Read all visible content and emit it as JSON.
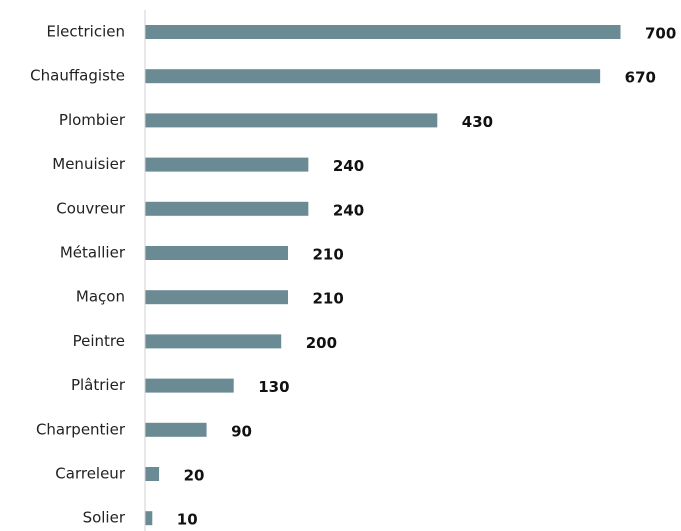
{
  "chart_data": {
    "type": "bar",
    "orientation": "horizontal",
    "categories": [
      "Electricien",
      "Chauffagiste",
      "Plombier",
      "Menuisier",
      "Couvreur",
      "Métallier",
      "Maçon",
      "Peintre",
      "Plâtrier",
      "Charpentier",
      "Carreleur",
      "Solier"
    ],
    "values": [
      700,
      670,
      430,
      240,
      240,
      210,
      210,
      200,
      130,
      90,
      20,
      10
    ],
    "color": "#6a8b93"
  }
}
